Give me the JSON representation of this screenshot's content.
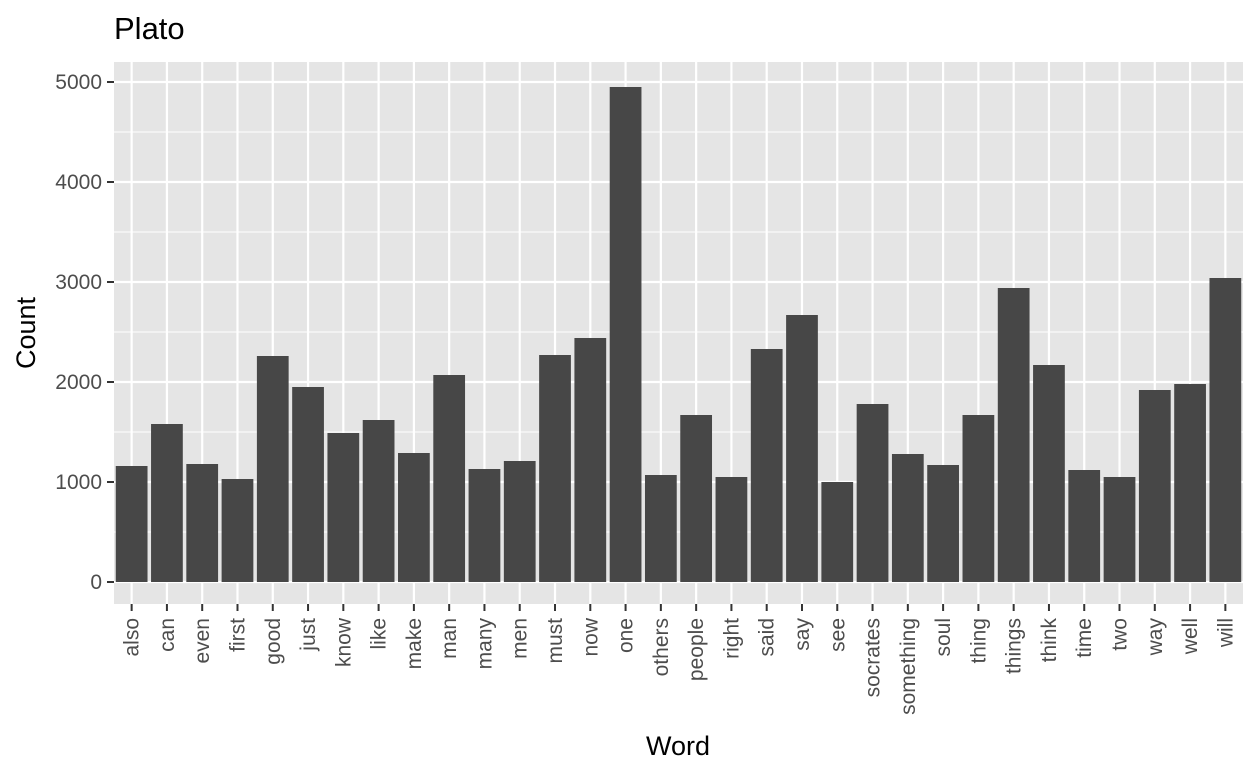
{
  "chart_data": {
    "type": "bar",
    "title": "Plato",
    "xlabel": "Word",
    "ylabel": "Count",
    "ylim": [
      -220,
      5200
    ],
    "yticks": [
      0,
      1000,
      2000,
      3000,
      4000,
      5000
    ],
    "grid": true,
    "categories": [
      "also",
      "can",
      "even",
      "first",
      "good",
      "just",
      "know",
      "like",
      "make",
      "man",
      "many",
      "men",
      "must",
      "now",
      "one",
      "others",
      "people",
      "right",
      "said",
      "say",
      "see",
      "socrates",
      "something",
      "soul",
      "thing",
      "things",
      "think",
      "time",
      "two",
      "way",
      "well",
      "will"
    ],
    "values": [
      1160,
      1580,
      1180,
      1030,
      2260,
      1950,
      1490,
      1620,
      1290,
      2070,
      1130,
      1210,
      2270,
      2440,
      4950,
      1070,
      1670,
      1050,
      2330,
      2670,
      1000,
      1780,
      1280,
      1170,
      1670,
      2940,
      2170,
      1120,
      1050,
      1920,
      1980,
      3040
    ],
    "colors": {
      "panel": "#e5e5e5",
      "grid": "#ffffff",
      "bar": "#474747",
      "tick_text": "#4d4d4d",
      "text": "#000000"
    }
  }
}
